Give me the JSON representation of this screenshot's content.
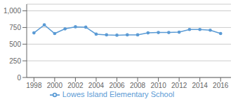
{
  "chart_data": {
    "type": "line",
    "x": [
      1998,
      1999,
      2000,
      2001,
      2002,
      2003,
      2004,
      2005,
      2006,
      2007,
      2008,
      2009,
      2010,
      2011,
      2012,
      2013,
      2014,
      2015,
      2016
    ],
    "series": [
      {
        "name": "Lowes Island Elementary School",
        "color": "#5b9bd5",
        "marker": "circle",
        "values": [
          670,
          790,
          660,
          730,
          760,
          755,
          650,
          640,
          635,
          640,
          640,
          670,
          675,
          675,
          680,
          720,
          720,
          710,
          660
        ]
      }
    ],
    "xlim": [
      1997.3,
      2017.0
    ],
    "xticks": [
      1998,
      2000,
      2002,
      2004,
      2006,
      2008,
      2010,
      2012,
      2014,
      2016
    ],
    "ylim": [
      0,
      1100
    ],
    "yticks": [
      0,
      250,
      500,
      750,
      {
        "value": 1000,
        "label": "1,000"
      }
    ],
    "grid": true,
    "legend": "bottom"
  }
}
